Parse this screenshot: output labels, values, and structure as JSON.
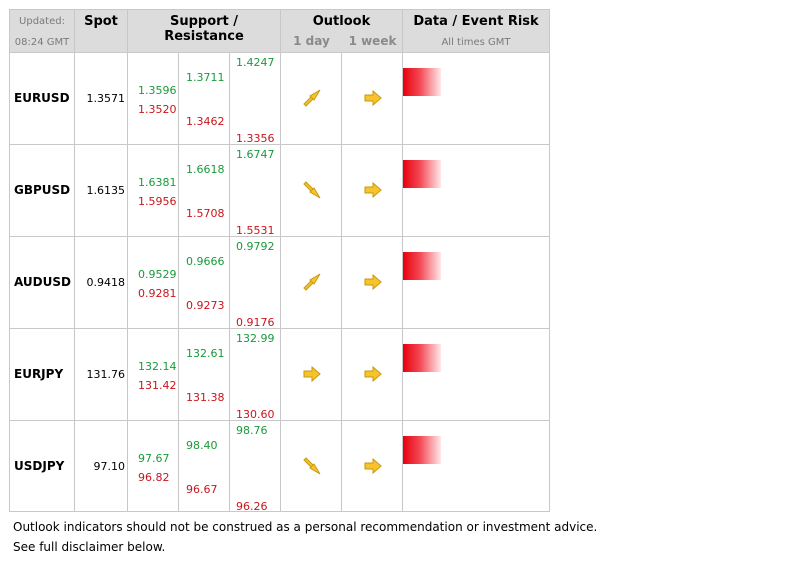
{
  "header": {
    "updated_label": "Updated:",
    "updated_time": "08:24 GMT",
    "spot": "Spot",
    "support_resistance": "Support / Resistance",
    "outlook": "Outlook",
    "outlook_1day": "1 day",
    "outlook_1week": "1 week",
    "risk": "Data / Event Risk",
    "risk_sub": "All times GMT"
  },
  "rows": [
    {
      "pair": "EURUSD",
      "spot": "1.3571",
      "s1": "1.3596",
      "s2": "1.3520",
      "m1": "1.3711",
      "m2": "1.3462",
      "r1": "1.4247",
      "r2": "1.3356",
      "day": "up-right",
      "week": "right"
    },
    {
      "pair": "GBPUSD",
      "spot": "1.6135",
      "s1": "1.6381",
      "s2": "1.5956",
      "m1": "1.6618",
      "m2": "1.5708",
      "r1": "1.6747",
      "r2": "1.5531",
      "day": "down-right",
      "week": "right"
    },
    {
      "pair": "AUDUSD",
      "spot": "0.9418",
      "s1": "0.9529",
      "s2": "0.9281",
      "m1": "0.9666",
      "m2": "0.9273",
      "r1": "0.9792",
      "r2": "0.9176",
      "day": "up-right",
      "week": "right"
    },
    {
      "pair": "EURJPY",
      "spot": "131.76",
      "s1": "132.14",
      "s2": "131.42",
      "m1": "132.61",
      "m2": "131.38",
      "r1": "132.99",
      "r2": "130.60",
      "day": "right",
      "week": "right"
    },
    {
      "pair": "USDJPY",
      "spot": "97.10",
      "s1": "97.67",
      "s2": "96.82",
      "m1": "98.40",
      "m2": "96.67",
      "r1": "98.76",
      "r2": "96.26",
      "day": "down-right",
      "week": "right"
    }
  ],
  "footer": {
    "line1": "Outlook indicators should not be construed as a personal recommendation or investment advice.",
    "line2": "See full disclaimer below."
  }
}
